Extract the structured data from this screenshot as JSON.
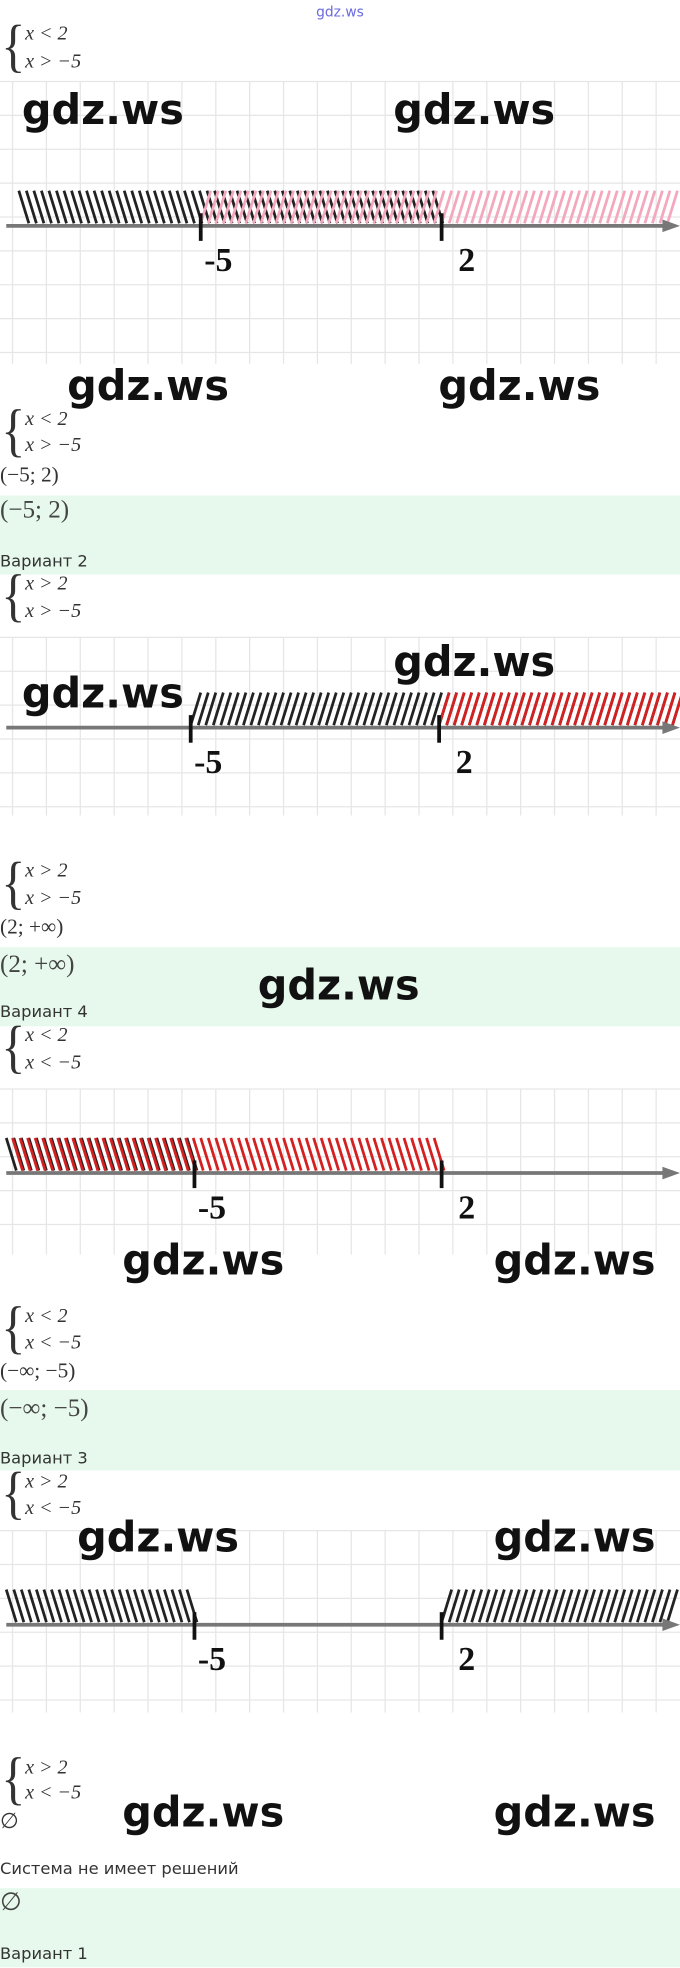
{
  "header": {
    "link": "gdz.ws"
  },
  "sections": [
    {
      "system": [
        "x < 2",
        "x > −5"
      ],
      "labels": [
        "-5",
        "2"
      ],
      "system_repeat": [
        "x < 2",
        "x > −5"
      ],
      "result": "(−5; 2)",
      "answer": "(−5; 2)",
      "variant": "Вариант 2"
    },
    {
      "system": [
        "x > 2",
        "x > −5"
      ],
      "labels": [
        "-5",
        "2"
      ],
      "system_repeat": [
        "x > 2",
        "x > −5"
      ],
      "result": "(2; +∞)",
      "answer": "(2; +∞)",
      "variant": "Вариант 4"
    },
    {
      "system": [
        "x < 2",
        "x < −5"
      ],
      "labels": [
        "-5",
        "2"
      ],
      "system_repeat": [
        "x < 2",
        "x < −5"
      ],
      "result": "(−∞; −5)",
      "answer": "(−∞; −5)",
      "variant": "Вариант 3"
    },
    {
      "system": [
        "x > 2",
        "x < −5"
      ],
      "labels": [
        "-5",
        "2"
      ],
      "system_repeat": [
        "x > 2",
        "x < −5"
      ],
      "result": "∅",
      "note": "Система не имеет решений",
      "answer": "∅",
      "variant": "Вариант 1"
    }
  ],
  "watermarks": [
    "gdz.ws",
    "gdz.ws",
    "gdz.ws",
    "gdz.ws",
    "gdz.ws",
    "gdz.ws",
    "gdz.ws",
    "gdz.ws",
    "gdz.ws",
    "gdz.ws",
    "gdz.ws",
    "gdz.ws",
    "gdz.ws"
  ]
}
